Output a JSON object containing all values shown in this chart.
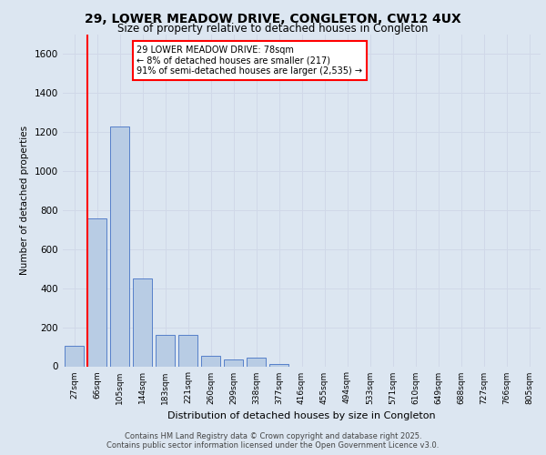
{
  "title_line1": "29, LOWER MEADOW DRIVE, CONGLETON, CW12 4UX",
  "title_line2": "Size of property relative to detached houses in Congleton",
  "xlabel": "Distribution of detached houses by size in Congleton",
  "ylabel": "Number of detached properties",
  "footer_line1": "Contains HM Land Registry data © Crown copyright and database right 2025.",
  "footer_line2": "Contains public sector information licensed under the Open Government Licence v3.0.",
  "bins": [
    "27sqm",
    "66sqm",
    "105sqm",
    "144sqm",
    "183sqm",
    "221sqm",
    "260sqm",
    "299sqm",
    "338sqm",
    "377sqm",
    "416sqm",
    "455sqm",
    "494sqm",
    "533sqm",
    "571sqm",
    "610sqm",
    "649sqm",
    "688sqm",
    "727sqm",
    "766sqm",
    "805sqm"
  ],
  "values": [
    105,
    755,
    1225,
    450,
    160,
    160,
    55,
    35,
    45,
    10,
    0,
    0,
    0,
    0,
    0,
    0,
    0,
    0,
    0,
    0,
    0
  ],
  "bar_color": "#b8cce4",
  "bar_edge_color": "#4472c4",
  "grid_color": "#d0d8e8",
  "background_color": "#dce6f1",
  "plot_bg_color": "#dce6f1",
  "vline_color": "#ff0000",
  "annotation_text": "29 LOWER MEADOW DRIVE: 78sqm\n← 8% of detached houses are smaller (217)\n91% of semi-detached houses are larger (2,535) →",
  "annotation_box_color": "#ffffff",
  "annotation_box_edge": "#ff0000",
  "ylim": [
    0,
    1700
  ],
  "yticks": [
    0,
    200,
    400,
    600,
    800,
    1000,
    1200,
    1400,
    1600
  ]
}
